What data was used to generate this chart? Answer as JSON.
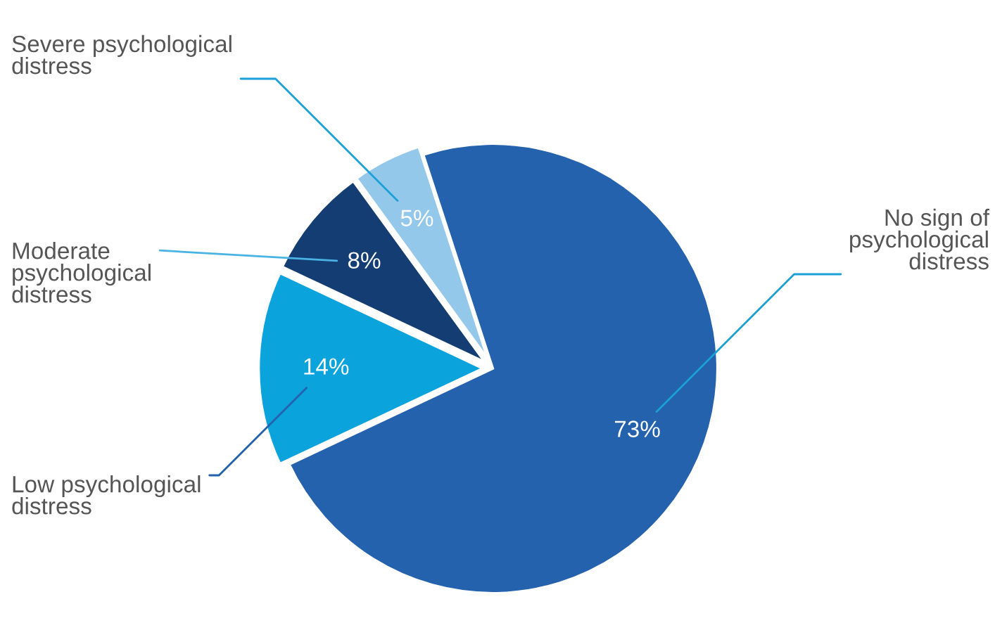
{
  "chart_data": {
    "type": "pie",
    "categories": [
      "No sign of\npsychological\ndistress",
      "Low psychological\ndistress",
      "Moderate\npsychological\ndistress",
      "Severe psychological\ndistress"
    ],
    "values": [
      73,
      14,
      8,
      5
    ],
    "value_labels": [
      "73%",
      "14%",
      "8%",
      "5%"
    ],
    "colors": [
      "#2462ad",
      "#0aa3dc",
      "#133d73",
      "#94c8ea"
    ]
  }
}
